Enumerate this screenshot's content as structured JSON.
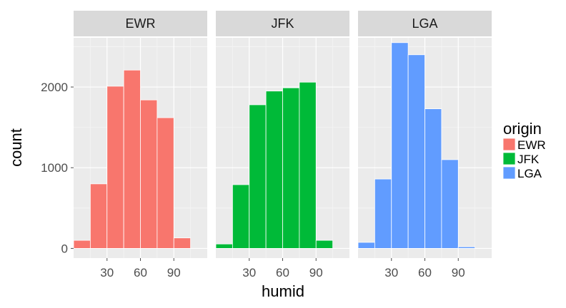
{
  "chart_data": {
    "type": "bar",
    "subtype": "faceted-histogram",
    "xlabel": "humid",
    "ylabel": "count",
    "x_ticks": [
      30,
      60,
      90
    ],
    "y_ticks": [
      0,
      1000,
      2000
    ],
    "ylim": [
      0,
      2600
    ],
    "xlim": [
      0,
      120
    ],
    "bin_width": 15,
    "bin_centers": [
      7.5,
      22.5,
      37.5,
      52.5,
      67.5,
      82.5,
      97.5,
      112.5
    ],
    "grid": true,
    "legend": {
      "title": "origin",
      "position": "right",
      "entries": [
        {
          "label": "EWR",
          "color": "#F8766D"
        },
        {
          "label": "JFK",
          "color": "#00BA38"
        },
        {
          "label": "LGA",
          "color": "#619CFF"
        }
      ]
    },
    "facets": [
      {
        "name": "EWR",
        "color": "#F8766D",
        "values": [
          100,
          800,
          2010,
          2210,
          1840,
          1620,
          130,
          0
        ]
      },
      {
        "name": "JFK",
        "color": "#00BA38",
        "values": [
          55,
          790,
          1780,
          1950,
          1990,
          2060,
          100,
          0
        ]
      },
      {
        "name": "LGA",
        "color": "#619CFF",
        "values": [
          75,
          860,
          2550,
          2400,
          1730,
          1100,
          20,
          0
        ]
      }
    ]
  }
}
